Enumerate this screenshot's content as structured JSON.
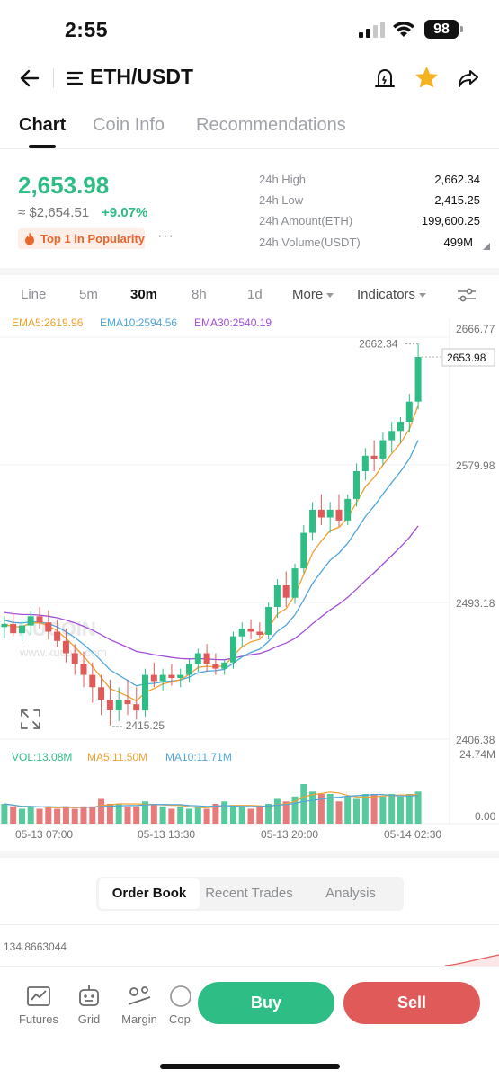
{
  "status": {
    "time": "2:55",
    "battery": "98"
  },
  "header": {
    "pair": "ETH/USDT"
  },
  "tabs": [
    {
      "label": "Chart"
    },
    {
      "label": "Coin Info"
    },
    {
      "label": "Recommendations"
    }
  ],
  "price": {
    "last": "2,653.98",
    "fiat": "≈ $2,654.51",
    "change": "+9.07%",
    "badge": "Top 1 in Popularity",
    "more": "···"
  },
  "stats": [
    {
      "label": "24h High",
      "value": "2,662.34"
    },
    {
      "label": "24h Low",
      "value": "2,415.25"
    },
    {
      "label": "24h Amount(ETH)",
      "value": "199,600.25"
    },
    {
      "label": "24h Volume(USDT)",
      "value": "499M"
    }
  ],
  "intervals": [
    {
      "label": "Line"
    },
    {
      "label": "5m"
    },
    {
      "label": "30m"
    },
    {
      "label": "8h"
    },
    {
      "label": "1d"
    },
    {
      "label": "More"
    },
    {
      "label": "Indicators"
    }
  ],
  "colors": {
    "up": "#2dbd85",
    "down": "#e15a5a",
    "ema5": "#f0a030",
    "ema10": "#4fa6dd",
    "ema30": "#a24ed8"
  },
  "chart": {
    "ema5": "EMA5:2619.96",
    "ema10": "EMA10:2594.56",
    "ema30": "EMA30:2540.19",
    "vol": "VOL:13.08M",
    "ma5": "MA5:11.50M",
    "ma10": "MA10:11.71M",
    "watermark": "KUCOIN",
    "watermark_url": "www.kucoin.com"
  },
  "chart_data": {
    "type": "candlestick",
    "interval": "30m",
    "y_ticks": [
      "2666.77",
      "2579.98",
      "2493.18",
      "2406.38"
    ],
    "y_range": [
      2406.38,
      2666.77
    ],
    "high_label": "2662.34",
    "low_label": "2415.25",
    "last_price": "2653.98",
    "volume_ticks": [
      "24.74M",
      "0.00"
    ],
    "volume_range": [
      0,
      24.74
    ],
    "x_labels": [
      "05-13 07:00",
      "05-13 13:30",
      "05-13 20:00",
      "05-14 02:30"
    ],
    "candles": [
      [
        2479,
        2486,
        2472,
        2481
      ],
      [
        2481,
        2488,
        2473,
        2475
      ],
      [
        2475,
        2484,
        2470,
        2480
      ],
      [
        2480,
        2490,
        2474,
        2486
      ],
      [
        2486,
        2492,
        2478,
        2482
      ],
      [
        2482,
        2490,
        2471,
        2476
      ],
      [
        2476,
        2484,
        2466,
        2470
      ],
      [
        2470,
        2478,
        2456,
        2462
      ],
      [
        2462,
        2468,
        2448,
        2455
      ],
      [
        2455,
        2463,
        2440,
        2448
      ],
      [
        2448,
        2456,
        2430,
        2440
      ],
      [
        2440,
        2448,
        2422,
        2432
      ],
      [
        2432,
        2445,
        2415.25,
        2425
      ],
      [
        2425,
        2440,
        2418,
        2432
      ],
      [
        2432,
        2445,
        2422,
        2429
      ],
      [
        2429,
        2440,
        2419,
        2425
      ],
      [
        2425,
        2452,
        2421,
        2448
      ],
      [
        2448,
        2456,
        2440,
        2444
      ],
      [
        2444,
        2452,
        2438,
        2448
      ],
      [
        2448,
        2455,
        2441,
        2446
      ],
      [
        2446,
        2452,
        2440,
        2448
      ],
      [
        2448,
        2458,
        2443,
        2455
      ],
      [
        2455,
        2465,
        2450,
        2462
      ],
      [
        2462,
        2468,
        2450,
        2455
      ],
      [
        2455,
        2462,
        2448,
        2452
      ],
      [
        2452,
        2458,
        2448,
        2456
      ],
      [
        2456,
        2476,
        2452,
        2473
      ],
      [
        2473,
        2482,
        2466,
        2478
      ],
      [
        2478,
        2484,
        2471,
        2476
      ],
      [
        2476,
        2482,
        2472,
        2474
      ],
      [
        2474,
        2495,
        2471,
        2492
      ],
      [
        2492,
        2510,
        2485,
        2506
      ],
      [
        2506,
        2515,
        2492,
        2498
      ],
      [
        2498,
        2520,
        2494,
        2517
      ],
      [
        2517,
        2545,
        2514,
        2540
      ],
      [
        2540,
        2560,
        2535,
        2555
      ],
      [
        2555,
        2565,
        2545,
        2550
      ],
      [
        2550,
        2560,
        2540,
        2555
      ],
      [
        2555,
        2565,
        2544,
        2548
      ],
      [
        2548,
        2565,
        2545,
        2562
      ],
      [
        2562,
        2585,
        2557,
        2580
      ],
      [
        2580,
        2595,
        2574,
        2590
      ],
      [
        2590,
        2600,
        2580,
        2588
      ],
      [
        2588,
        2605,
        2584,
        2600
      ],
      [
        2600,
        2612,
        2592,
        2606
      ],
      [
        2606,
        2615,
        2598,
        2612
      ],
      [
        2612,
        2630,
        2605,
        2625
      ],
      [
        2625,
        2662.34,
        2620,
        2653.98
      ]
    ],
    "volume": [
      8,
      7,
      6,
      7,
      6,
      7,
      6,
      7,
      6,
      7,
      7,
      10,
      8,
      8,
      7,
      7,
      9,
      8,
      7,
      6,
      7,
      6,
      7,
      6,
      8,
      9,
      7,
      7,
      6,
      7,
      8,
      10,
      9,
      11,
      16,
      13,
      12,
      12,
      9,
      11,
      10,
      12,
      12,
      11,
      12,
      11,
      12,
      13
    ]
  },
  "orderbook": {
    "tabs": [
      {
        "label": "Order Book"
      },
      {
        "label": "Recent Trades"
      },
      {
        "label": "Analysis"
      }
    ],
    "first_value": "134.8663044"
  },
  "bottom": {
    "items": [
      {
        "label": "Futures"
      },
      {
        "label": "Grid"
      },
      {
        "label": "Margin"
      },
      {
        "label": "Cop"
      }
    ],
    "buy": "Buy",
    "sell": "Sell"
  }
}
